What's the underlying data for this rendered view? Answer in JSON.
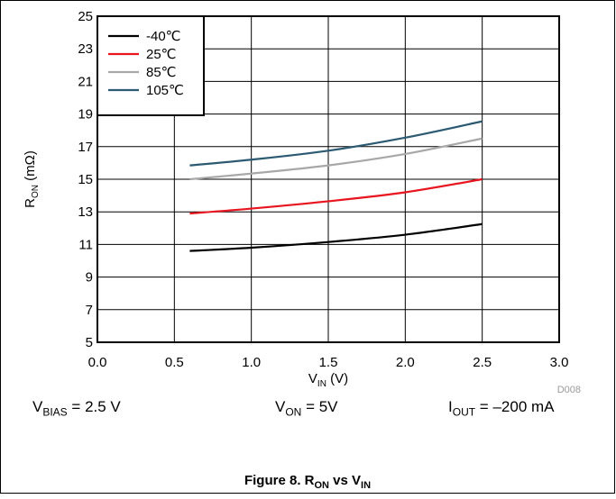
{
  "chart_data": {
    "type": "line",
    "xlabel": {
      "main": "V",
      "sub": "IN",
      "unit": " (V)"
    },
    "ylabel": {
      "main": "R",
      "sub": "ON",
      "unit": " (mΩ)"
    },
    "xlim": [
      0.0,
      3.0
    ],
    "ylim": [
      5,
      25
    ],
    "xticks": [
      "0.0",
      "0.5",
      "1.0",
      "1.5",
      "2.0",
      "2.5",
      "3.0"
    ],
    "yticks": [
      "5",
      "7",
      "9",
      "11",
      "13",
      "15",
      "17",
      "19",
      "21",
      "23",
      "25"
    ],
    "grid": true,
    "legend_position": "top-left",
    "series": [
      {
        "name": "-40℃",
        "color": "#000000",
        "x": [
          0.6,
          1.0,
          1.5,
          2.0,
          2.5
        ],
        "y": [
          10.6,
          10.8,
          11.15,
          11.6,
          12.25
        ]
      },
      {
        "name": "25℃",
        "color": "#e8141e",
        "x": [
          0.6,
          1.0,
          1.5,
          2.0,
          2.5
        ],
        "y": [
          12.9,
          13.2,
          13.65,
          14.2,
          15.0
        ]
      },
      {
        "name": "85℃",
        "color": "#a8a8a8",
        "x": [
          0.6,
          1.0,
          1.5,
          2.0,
          2.5
        ],
        "y": [
          15.0,
          15.35,
          15.85,
          16.55,
          17.5
        ]
      },
      {
        "name": "105℃",
        "color": "#2b5a72",
        "x": [
          0.6,
          1.0,
          1.5,
          2.0,
          2.5
        ],
        "y": [
          15.85,
          16.2,
          16.75,
          17.55,
          18.55
        ]
      }
    ],
    "code": "D008"
  },
  "conditions": {
    "vbias": {
      "main": "V",
      "sub": "BIAS",
      "rest": " = 2.5 V"
    },
    "von": {
      "main": "V",
      "sub": "ON",
      "rest": " = 5V"
    },
    "iout": {
      "main": "I",
      "sub": "OUT",
      "rest": " = –200 mA"
    }
  },
  "caption": {
    "prefix": "Figure 8. R",
    "sub1": "ON",
    "mid": " vs V",
    "sub2": "IN"
  }
}
